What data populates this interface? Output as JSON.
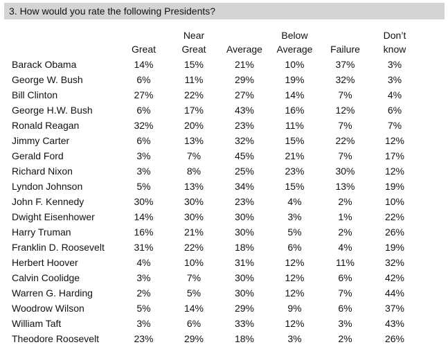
{
  "question": "3. How would you rate the following Presidents?",
  "columns": [
    [
      "",
      ""
    ],
    [
      "",
      "Great"
    ],
    [
      "Near",
      "Great"
    ],
    [
      "",
      "Average"
    ],
    [
      "Below",
      "Average"
    ],
    [
      "",
      "Failure"
    ],
    [
      "Don’t",
      "know"
    ]
  ],
  "rows": [
    [
      "Barack Obama",
      "14%",
      "15%",
      "21%",
      "10%",
      "37%",
      "3%"
    ],
    [
      "George W. Bush",
      "6%",
      "11%",
      "29%",
      "19%",
      "32%",
      "3%"
    ],
    [
      "Bill Clinton",
      "27%",
      "22%",
      "27%",
      "14%",
      "7%",
      "4%"
    ],
    [
      "George H.W. Bush",
      "6%",
      "17%",
      "43%",
      "16%",
      "12%",
      "6%"
    ],
    [
      "Ronald Reagan",
      "32%",
      "20%",
      "23%",
      "11%",
      "7%",
      "7%"
    ],
    [
      "Jimmy Carter",
      "6%",
      "13%",
      "32%",
      "15%",
      "22%",
      "12%"
    ],
    [
      "Gerald Ford",
      "3%",
      "7%",
      "45%",
      "21%",
      "7%",
      "17%"
    ],
    [
      "Richard Nixon",
      "3%",
      "8%",
      "25%",
      "23%",
      "30%",
      "12%"
    ],
    [
      "Lyndon Johnson",
      "5%",
      "13%",
      "34%",
      "15%",
      "13%",
      "19%"
    ],
    [
      "John F. Kennedy",
      "30%",
      "30%",
      "23%",
      "4%",
      "2%",
      "10%"
    ],
    [
      "Dwight Eisenhower",
      "14%",
      "30%",
      "30%",
      "3%",
      "1%",
      "22%"
    ],
    [
      "Harry Truman",
      "16%",
      "21%",
      "30%",
      "5%",
      "2%",
      "26%"
    ],
    [
      "Franklin D. Roosevelt",
      "31%",
      "22%",
      "18%",
      "6%",
      "4%",
      "19%"
    ],
    [
      "Herbert Hoover",
      "4%",
      "10%",
      "31%",
      "12%",
      "11%",
      "32%"
    ],
    [
      "Calvin Coolidge",
      "3%",
      "7%",
      "30%",
      "12%",
      "6%",
      "42%"
    ],
    [
      "Warren G. Harding",
      "2%",
      "5%",
      "30%",
      "12%",
      "7%",
      "44%"
    ],
    [
      "Woodrow Wilson",
      "5%",
      "14%",
      "29%",
      "9%",
      "6%",
      "37%"
    ],
    [
      "William Taft",
      "3%",
      "6%",
      "33%",
      "12%",
      "3%",
      "43%"
    ],
    [
      "Theodore Roosevelt",
      "23%",
      "29%",
      "18%",
      "3%",
      "2%",
      "26%"
    ]
  ]
}
